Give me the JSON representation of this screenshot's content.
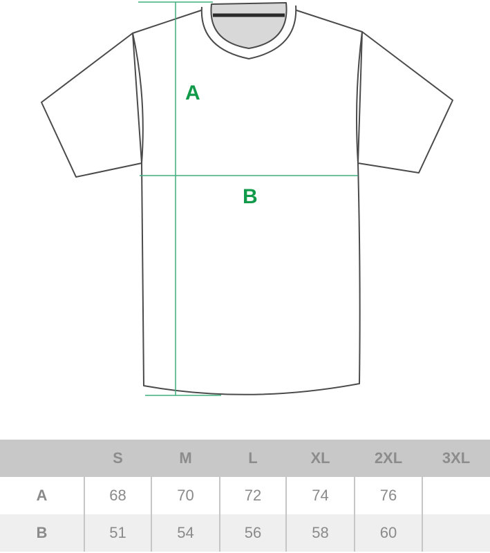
{
  "diagram": {
    "labels": {
      "a": "A",
      "b": "B"
    },
    "measure_color": "#119a4a"
  },
  "size_table": {
    "headers": [
      "",
      "S",
      "M",
      "L",
      "XL",
      "2XL",
      "3XL"
    ],
    "rows": [
      {
        "label": "A",
        "values": [
          "68",
          "70",
          "72",
          "74",
          "76",
          ""
        ]
      },
      {
        "label": "B",
        "values": [
          "51",
          "54",
          "56",
          "58",
          "60",
          ""
        ]
      }
    ]
  }
}
